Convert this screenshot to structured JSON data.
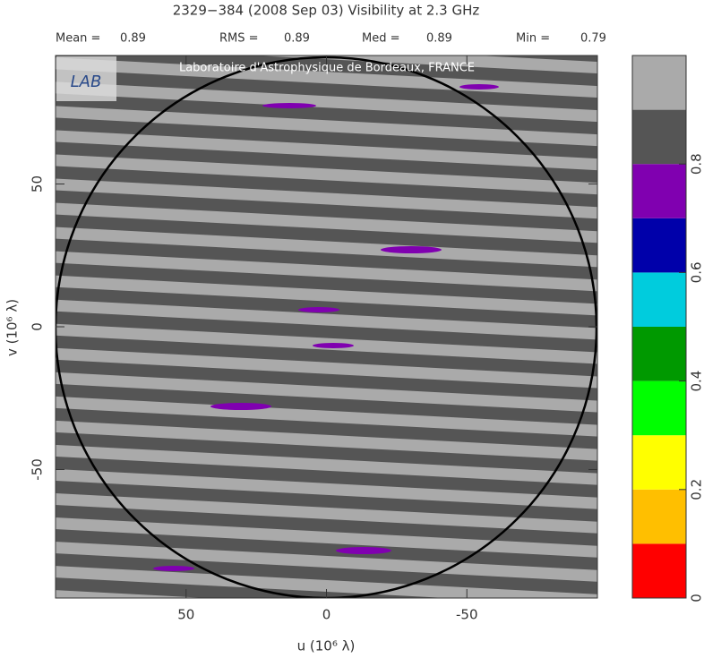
{
  "chart_data": {
    "type": "uv-map",
    "title": "2329−384  (2008 Sep 03)   Visibility at  2.3 GHz",
    "stats": [
      {
        "label": "Mean =",
        "value": 0.89
      },
      {
        "label": "RMS =",
        "value": 0.89
      },
      {
        "label": "Med =",
        "value": 0.89
      },
      {
        "label": "Min =",
        "value": 0.79
      }
    ],
    "banner": "Laboratoire d'Astrophysique de Bordeaux, FRANCE",
    "logo": "LAB",
    "xlabel": "u  (10⁶ λ)",
    "ylabel": "v  (10⁶ λ)",
    "xlim": [
      96.5,
      -96.5
    ],
    "xticks": [
      50,
      0,
      -50
    ],
    "ylim": [
      -95,
      95
    ],
    "yticks": [
      -50,
      0,
      50
    ],
    "colorbar": {
      "lim": [
        0,
        1
      ],
      "ticks": [
        0,
        0.2,
        0.4,
        0.6,
        0.8
      ],
      "colors": [
        "#ff0000",
        "#ffbf00",
        "#ffff00",
        "#00ff00",
        "#009900",
        "#00ccdd",
        "#0000aa",
        "#8000b0",
        "#555555",
        "#aaaaaa"
      ]
    }
  }
}
